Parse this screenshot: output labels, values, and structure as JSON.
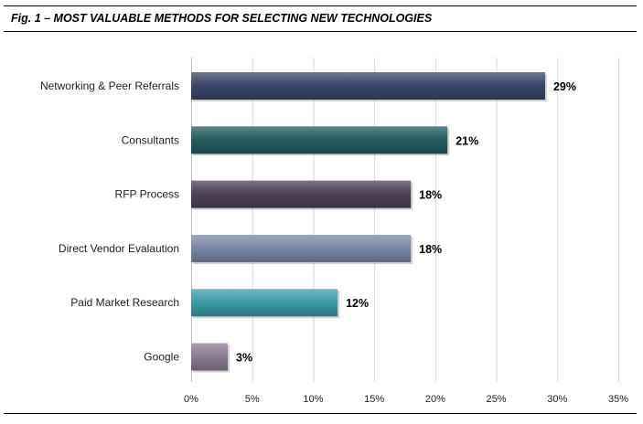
{
  "title": "Fig. 1 – MOST VALUABLE METHODS FOR SELECTING NEW TECHNOLOGIES",
  "chart_data": {
    "type": "bar",
    "orientation": "horizontal",
    "title": "Fig. 1 – MOST VALUABLE METHODS FOR SELECTING NEW TECHNOLOGIES",
    "categories": [
      "Networking & Peer Referrals",
      "Consultants",
      "RFP Process",
      "Direct Vendor Evalaution",
      "Paid Market Research",
      "Google"
    ],
    "values": [
      29,
      21,
      18,
      18,
      12,
      3
    ],
    "data_labels": [
      "29%",
      "21%",
      "18%",
      "18%",
      "12%",
      "3%"
    ],
    "colors": [
      "#3b4868",
      "#245f63",
      "#4e4358",
      "#7c89ab",
      "#3f9dab",
      "#8c7d93"
    ],
    "xlim": [
      0,
      35
    ],
    "xticks": [
      0,
      5,
      10,
      15,
      20,
      25,
      30,
      35
    ],
    "xtick_labels": [
      "0%",
      "5%",
      "10%",
      "15%",
      "20%",
      "25%",
      "30%",
      "35%"
    ],
    "xlabel": "",
    "ylabel": "",
    "grid": "vertical",
    "legend": "none"
  }
}
